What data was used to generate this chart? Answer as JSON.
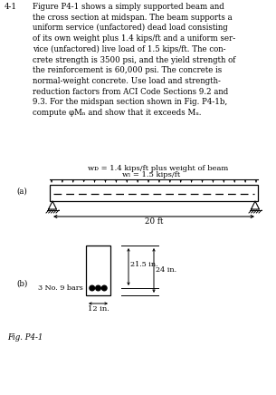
{
  "title_num": "4-1",
  "para_text": "Figure P4-1 shows a simply supported beam and\nthe cross section at midspan. The beam supports a\nuniform service (unfactored) dead load consisting\nof its own weight plus 1.4 kips/ft and a uniform ser-\nvice (unfactored) live load of 1.5 kips/ft. The con-\ncrete strength is 3500 psi, and the yield strength of\nthe reinforcement is 60,000 psi. The concrete is\nnormal-weight concrete. Use load and strength-\nreduction factors from ACI Code Sections 9.2 and\n9.3. For the midspan section shown in Fig. P4-1b,\ncompute φMₙ and show that it exceeds Mᵤ.",
  "label_a": "(a)",
  "label_b": "(b)",
  "fig_label": "Fig. P4-1",
  "load_label1": "wᴅ = 1.4 kips/ft plus weight of beam",
  "load_label2": "wₗ = 1.5 kips/ft",
  "span_label": "20 ft",
  "dim1": "21.5 in.",
  "dim2": "24 in.",
  "width_label": "12 in.",
  "bars_label": "3 No. 9 bars",
  "bg_color": "#ffffff",
  "text_color": "#000000"
}
